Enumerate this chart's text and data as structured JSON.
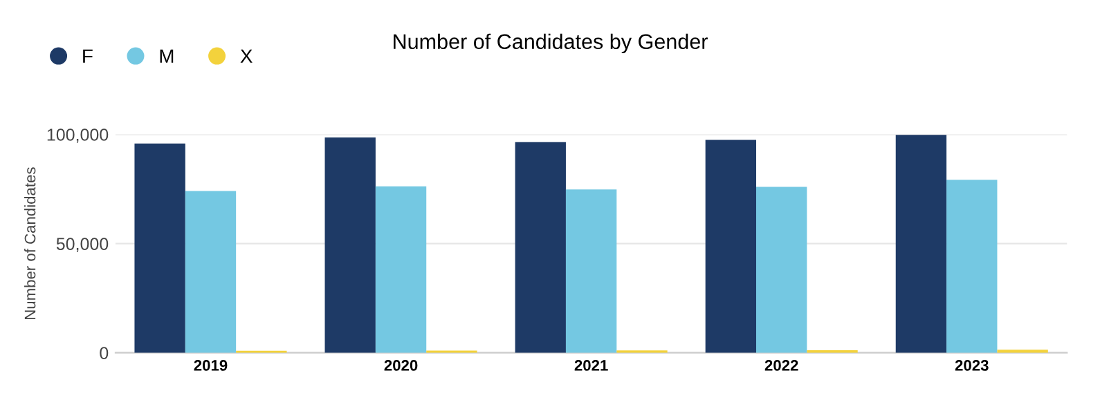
{
  "chart_data": {
    "type": "bar",
    "title": "Number of Candidates by Gender",
    "ylabel": "Number of Candidates",
    "categories": [
      "2019",
      "2020",
      "2021",
      "2022",
      "2023"
    ],
    "series": [
      {
        "name": "F",
        "color": "#1e3a66",
        "values": [
          95800,
          98600,
          96500,
          97500,
          99800
        ]
      },
      {
        "name": "M",
        "color": "#74c8e2",
        "values": [
          74100,
          76200,
          74800,
          76000,
          79200
        ]
      },
      {
        "name": "X",
        "color": "#f3d23c",
        "values": [
          900,
          1000,
          1100,
          1200,
          1400
        ]
      }
    ],
    "ylim": [
      0,
      100000
    ],
    "yticks": [
      {
        "value": 0,
        "label": "0"
      },
      {
        "value": 50000,
        "label": "50,000"
      },
      {
        "value": 100000,
        "label": "100,000"
      }
    ],
    "grid": "y",
    "legend": "top left"
  }
}
